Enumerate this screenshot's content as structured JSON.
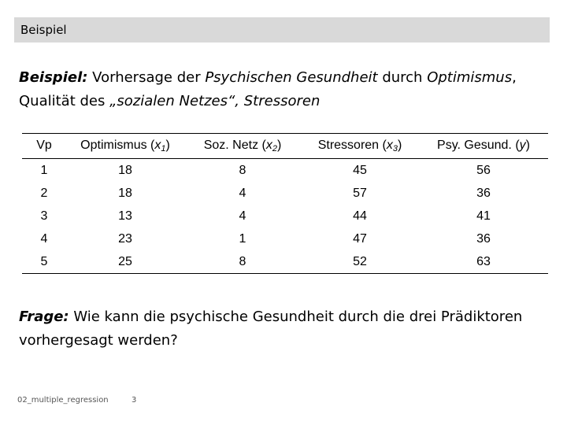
{
  "header": {
    "title": "Beispiel"
  },
  "intro": {
    "lead": "Beispiel:",
    "t1": " Vorhersage der ",
    "i1": "Psychischen Gesundheit",
    "t2": " durch ",
    "i2": "Optimismus",
    "t3": ",",
    "t4": "Qualität des ",
    "i3": "„sozialen Netzes“, Stressoren"
  },
  "table": {
    "headers": [
      {
        "label": "Vp",
        "var": "",
        "sub": "",
        "close": ""
      },
      {
        "label": "Optimismus (",
        "var": "x",
        "sub": "1",
        "close": ")"
      },
      {
        "label": "Soz. Netz (",
        "var": "x",
        "sub": "2",
        "close": ")"
      },
      {
        "label": "Stressoren (",
        "var": "x",
        "sub": "3",
        "close": ")"
      },
      {
        "label": "Psy. Gesund. (",
        "var": "y",
        "sub": "",
        "close": ")"
      }
    ],
    "rows": [
      [
        "1",
        "18",
        "8",
        "45",
        "56"
      ],
      [
        "2",
        "18",
        "4",
        "57",
        "36"
      ],
      [
        "3",
        "13",
        "4",
        "44",
        "41"
      ],
      [
        "4",
        "23",
        "1",
        "47",
        "36"
      ],
      [
        "5",
        "25",
        "8",
        "52",
        "63"
      ]
    ]
  },
  "question": {
    "lead": "Frage:",
    "text": " Wie kann die psychische Gesundheit durch die drei Prädiktoren vorhergesagt werden?"
  },
  "footer": {
    "file": "02_multiple_regression",
    "page": "3"
  }
}
